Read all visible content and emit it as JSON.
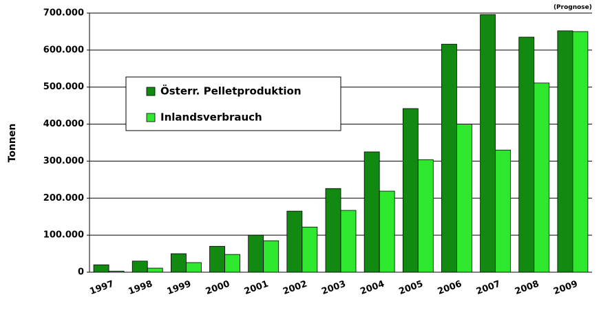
{
  "chart_data": {
    "type": "bar",
    "y_label": "Tonnen",
    "annotation": "(Prognose)",
    "categories": [
      "1997",
      "1998",
      "1999",
      "2000",
      "2001",
      "2002",
      "2003",
      "2004",
      "2005",
      "2006",
      "2007",
      "2008",
      "2009"
    ],
    "series": [
      {
        "name": "Österr. Pelletproduktion",
        "color": "#128a12",
        "values": [
          20000,
          30000,
          50000,
          70000,
          100000,
          165000,
          226000,
          325000,
          442000,
          616000,
          696000,
          635000,
          652000
        ]
      },
      {
        "name": "Inlandsverbrauch",
        "color": "#2ee82e",
        "values": [
          3000,
          11000,
          26000,
          48000,
          85000,
          122000,
          167000,
          219000,
          304000,
          400000,
          330000,
          511000,
          650000
        ]
      }
    ],
    "ylim": [
      0,
      700000
    ],
    "yticks": [
      0,
      {
        "value": 100000,
        "label": "100.000"
      },
      {
        "value": 200000,
        "label": "200.000"
      },
      {
        "value": 300000,
        "label": "300.000"
      },
      {
        "value": 400000,
        "label": "400.000"
      },
      {
        "value": 500000,
        "label": "500.000"
      },
      {
        "value": 600000,
        "label": "600.000"
      },
      {
        "value": 700000,
        "label": "700.000"
      }
    ],
    "grid": true
  }
}
